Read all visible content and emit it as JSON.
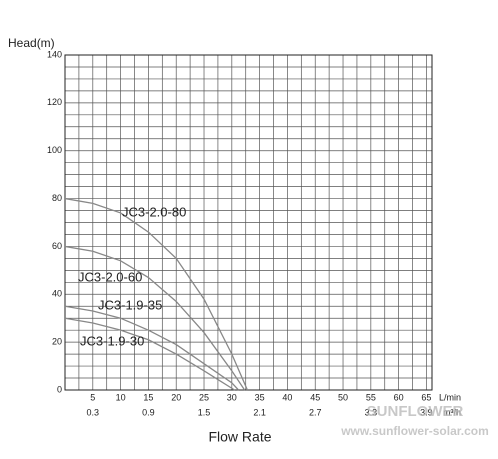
{
  "chart_data": {
    "type": "line",
    "ylabel": "Head(m)",
    "xlabel": "Flow Rate",
    "xunit": "L/min",
    "x2unit": "m³/h",
    "xlim": [
      0,
      66
    ],
    "ylim": [
      0,
      140
    ],
    "xticks": [
      5,
      10,
      15,
      20,
      25,
      30,
      35,
      40,
      45,
      50,
      55,
      60,
      65
    ],
    "yticks": [
      0,
      20,
      40,
      60,
      80,
      100,
      120,
      140
    ],
    "x2lim": [
      0,
      3.96
    ],
    "x2ticks": [
      0.3,
      0.9,
      1.5,
      2.1,
      2.7,
      3.3,
      3.9
    ],
    "grid": true,
    "minor_grid": {
      "x": 2.5,
      "y": 5
    },
    "series": [
      {
        "name": "JC3-2.0-80",
        "color": "#888888",
        "x": [
          0,
          5,
          10,
          15,
          20,
          25,
          30,
          32.8
        ],
        "values": [
          80,
          78,
          74,
          66,
          55,
          38,
          15,
          0
        ]
      },
      {
        "name": "JC3-2.0-60",
        "color": "#888888",
        "x": [
          0,
          5,
          10,
          15,
          20,
          25,
          30,
          32.3
        ],
        "values": [
          60,
          58,
          54,
          47,
          37,
          24,
          8,
          0
        ]
      },
      {
        "name": "JC3-1.9-35",
        "color": "#888888",
        "x": [
          0,
          5,
          10,
          15,
          20,
          25,
          30,
          31.2
        ],
        "values": [
          35,
          33,
          30,
          25,
          19,
          11,
          3,
          0
        ]
      },
      {
        "name": "JC3-1.9-30",
        "color": "#888888",
        "x": [
          0,
          5,
          10,
          15,
          20,
          25,
          30.5
        ],
        "values": [
          30,
          28,
          25,
          21,
          15,
          8,
          0
        ]
      }
    ],
    "watermark": [
      "SUNFLOWER",
      "www.sunflower-solar.com"
    ]
  }
}
